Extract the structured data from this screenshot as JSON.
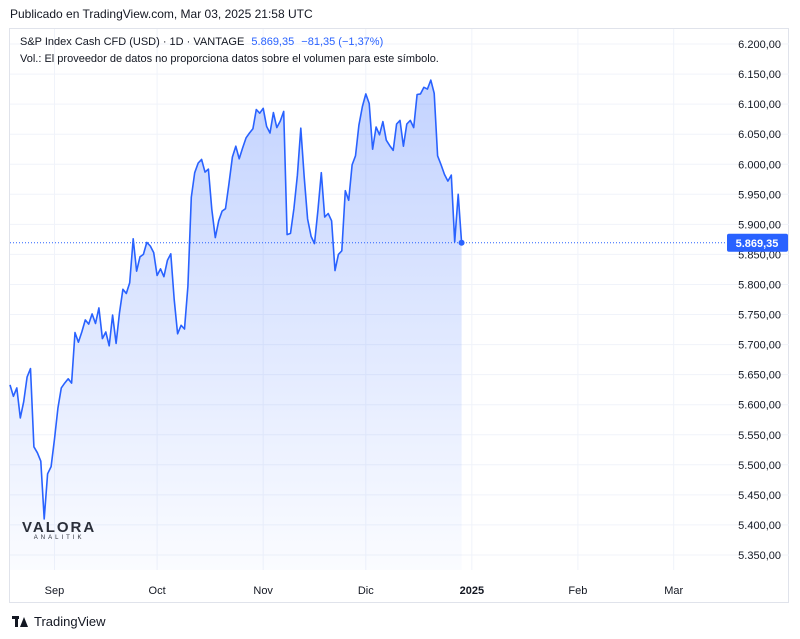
{
  "header": {
    "published": "Publicado en TradingView.com, Mar 03, 2025 21:58 UTC"
  },
  "legend": {
    "symbol": "S&P Index Cash CFD (USD) · 1D · VANTAGE",
    "last": "5.869,35",
    "change": "−81,35 (−1,37%)",
    "volume_note": "Vol.: El proveedor de datos no proporciona datos sobre el volumen para este símbolo."
  },
  "watermark": {
    "main": "VALORA",
    "sub": "ANALITIK"
  },
  "footer": {
    "brand": "TradingView"
  },
  "colors": {
    "line": "#2962ff",
    "fill_top": "#2962ff",
    "grid": "#f0f3fa",
    "axis_text": "#131722",
    "last_label_bg": "#2962ff"
  },
  "chart_data": {
    "type": "area",
    "title": "",
    "xlabel": "",
    "ylabel": "",
    "ylim": [
      5325,
      6225
    ],
    "grid": true,
    "y_ticks": [
      {
        "value": 5350,
        "label": "5.350,00"
      },
      {
        "value": 5400,
        "label": "5.400,00"
      },
      {
        "value": 5450,
        "label": "5.450,00"
      },
      {
        "value": 5500,
        "label": "5.500,00"
      },
      {
        "value": 5550,
        "label": "5.550,00"
      },
      {
        "value": 5600,
        "label": "5.600,00"
      },
      {
        "value": 5650,
        "label": "5.650,00"
      },
      {
        "value": 5700,
        "label": "5.700,00"
      },
      {
        "value": 5750,
        "label": "5.750,00"
      },
      {
        "value": 5800,
        "label": "5.800,00"
      },
      {
        "value": 5850,
        "label": "5.850,00"
      },
      {
        "value": 5900,
        "label": "5.900,00"
      },
      {
        "value": 5950,
        "label": "5.950,00"
      },
      {
        "value": 6000,
        "label": "6.000,00"
      },
      {
        "value": 6050,
        "label": "6.050,00"
      },
      {
        "value": 6100,
        "label": "6.100,00"
      },
      {
        "value": 6150,
        "label": "6.150,00"
      },
      {
        "value": 6200,
        "label": "6.200,00"
      }
    ],
    "x_ticks": [
      {
        "label": "Sep",
        "date": "2024-09-01",
        "bold": false
      },
      {
        "label": "Oct",
        "date": "2024-10-01",
        "bold": false
      },
      {
        "label": "Nov",
        "date": "2024-11-01",
        "bold": false
      },
      {
        "label": "Dic",
        "date": "2024-12-01",
        "bold": false
      },
      {
        "label": "2025",
        "date": "2025-01-01",
        "bold": true
      },
      {
        "label": "Feb",
        "date": "2025-02-01",
        "bold": false
      },
      {
        "label": "Mar",
        "date": "2025-03-01",
        "bold": false
      }
    ],
    "last_value": {
      "value": 5869.35,
      "label": "5.869,35"
    },
    "x_range": [
      "2024-08-19",
      "2025-03-16"
    ],
    "series": [
      {
        "values": [
          [
            "2024-08-19",
            5633
          ],
          [
            "2024-08-20",
            5614
          ],
          [
            "2024-08-21",
            5628
          ],
          [
            "2024-08-22",
            5578
          ],
          [
            "2024-08-23",
            5605
          ],
          [
            "2024-08-24",
            5646
          ],
          [
            "2024-08-25",
            5660
          ],
          [
            "2024-08-26",
            5530
          ],
          [
            "2024-08-27",
            5520
          ],
          [
            "2024-08-28",
            5506
          ],
          [
            "2024-08-29",
            5410
          ],
          [
            "2024-08-30",
            5485
          ],
          [
            "2024-08-31",
            5497
          ],
          [
            "2024-09-01",
            5543
          ],
          [
            "2024-09-02",
            5594
          ],
          [
            "2024-09-03",
            5628
          ],
          [
            "2024-09-04",
            5636
          ],
          [
            "2024-09-05",
            5643
          ],
          [
            "2024-09-06",
            5636
          ],
          [
            "2024-09-07",
            5720
          ],
          [
            "2024-09-08",
            5704
          ],
          [
            "2024-09-09",
            5721
          ],
          [
            "2024-09-10",
            5741
          ],
          [
            "2024-09-11",
            5734
          ],
          [
            "2024-09-12",
            5751
          ],
          [
            "2024-09-13",
            5735
          ],
          [
            "2024-09-14",
            5761
          ],
          [
            "2024-09-15",
            5710
          ],
          [
            "2024-09-16",
            5721
          ],
          [
            "2024-09-17",
            5698
          ],
          [
            "2024-09-18",
            5749
          ],
          [
            "2024-09-19",
            5702
          ],
          [
            "2024-09-20",
            5753
          ],
          [
            "2024-09-21",
            5792
          ],
          [
            "2024-09-22",
            5785
          ],
          [
            "2024-09-23",
            5803
          ],
          [
            "2024-09-24",
            5876
          ],
          [
            "2024-09-25",
            5822
          ],
          [
            "2024-09-26",
            5846
          ],
          [
            "2024-09-27",
            5850
          ],
          [
            "2024-09-28",
            5870
          ],
          [
            "2024-09-29",
            5864
          ],
          [
            "2024-09-30",
            5853
          ],
          [
            "2024-10-01",
            5815
          ],
          [
            "2024-10-02",
            5826
          ],
          [
            "2024-10-03",
            5813
          ],
          [
            "2024-10-04",
            5840
          ],
          [
            "2024-10-05",
            5851
          ],
          [
            "2024-10-06",
            5775
          ],
          [
            "2024-10-07",
            5718
          ],
          [
            "2024-10-08",
            5732
          ],
          [
            "2024-10-09",
            5726
          ],
          [
            "2024-10-10",
            5797
          ],
          [
            "2024-10-11",
            5945
          ],
          [
            "2024-10-12",
            5986
          ],
          [
            "2024-10-13",
            6002
          ],
          [
            "2024-10-14",
            6008
          ],
          [
            "2024-10-15",
            5987
          ],
          [
            "2024-10-16",
            5992
          ],
          [
            "2024-10-17",
            5925
          ],
          [
            "2024-10-18",
            5878
          ],
          [
            "2024-10-19",
            5906
          ],
          [
            "2024-10-20",
            5922
          ],
          [
            "2024-10-21",
            5926
          ],
          [
            "2024-10-22",
            5967
          ],
          [
            "2024-10-23",
            6012
          ],
          [
            "2024-10-24",
            6030
          ],
          [
            "2024-10-25",
            6009
          ],
          [
            "2024-10-26",
            6027
          ],
          [
            "2024-10-27",
            6044
          ],
          [
            "2024-10-28",
            6052
          ],
          [
            "2024-10-29",
            6059
          ],
          [
            "2024-10-30",
            6091
          ],
          [
            "2024-10-31",
            6085
          ],
          [
            "2024-11-01",
            6093
          ],
          [
            "2024-11-02",
            6063
          ],
          [
            "2024-11-03",
            6052
          ],
          [
            "2024-11-04",
            6086
          ],
          [
            "2024-11-05",
            6061
          ],
          [
            "2024-11-06",
            6072
          ],
          [
            "2024-11-07",
            6088
          ],
          [
            "2024-11-08",
            5883
          ],
          [
            "2024-11-09",
            5885
          ],
          [
            "2024-11-10",
            5926
          ],
          [
            "2024-11-11",
            5982
          ],
          [
            "2024-11-12",
            6060
          ],
          [
            "2024-11-13",
            5979
          ],
          [
            "2024-11-14",
            5909
          ],
          [
            "2024-11-15",
            5880
          ],
          [
            "2024-11-16",
            5868
          ],
          [
            "2024-11-17",
            5923
          ],
          [
            "2024-11-18",
            5986
          ],
          [
            "2024-11-19",
            5912
          ],
          [
            "2024-11-20",
            5918
          ],
          [
            "2024-11-21",
            5906
          ],
          [
            "2024-11-22",
            5823
          ],
          [
            "2024-11-23",
            5850
          ],
          [
            "2024-11-24",
            5856
          ],
          [
            "2024-11-25",
            5956
          ],
          [
            "2024-11-26",
            5940
          ],
          [
            "2024-11-27",
            5999
          ],
          [
            "2024-11-28",
            6014
          ],
          [
            "2024-11-29",
            6065
          ],
          [
            "2024-11-30",
            6096
          ],
          [
            "2024-12-01",
            6117
          ],
          [
            "2024-12-02",
            6101
          ],
          [
            "2024-12-03",
            6025
          ],
          [
            "2024-12-04",
            6062
          ],
          [
            "2024-12-05",
            6049
          ],
          [
            "2024-12-06",
            6071
          ],
          [
            "2024-12-07",
            6040
          ],
          [
            "2024-12-08",
            6031
          ],
          [
            "2024-12-09",
            6023
          ],
          [
            "2024-12-10",
            6067
          ],
          [
            "2024-12-11",
            6073
          ],
          [
            "2024-12-12",
            6030
          ],
          [
            "2024-12-13",
            6067
          ],
          [
            "2024-12-14",
            6073
          ],
          [
            "2024-12-15",
            6061
          ],
          [
            "2024-12-16",
            6116
          ],
          [
            "2024-12-17",
            6117
          ],
          [
            "2024-12-18",
            6128
          ],
          [
            "2024-12-19",
            6125
          ],
          [
            "2024-12-20",
            6140
          ],
          [
            "2024-12-21",
            6118
          ],
          [
            "2024-12-22",
            6014
          ],
          [
            "2024-12-23",
            5999
          ],
          [
            "2024-12-24",
            5983
          ],
          [
            "2024-12-25",
            5972
          ],
          [
            "2024-12-26",
            5982
          ],
          [
            "2024-12-27",
            5871
          ],
          [
            "2024-12-28",
            5950
          ],
          [
            "2024-12-29",
            5869.35
          ]
        ]
      }
    ]
  }
}
